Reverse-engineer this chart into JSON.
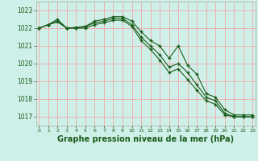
{
  "x": [
    0,
    1,
    2,
    3,
    4,
    5,
    6,
    7,
    8,
    9,
    10,
    11,
    12,
    13,
    14,
    15,
    16,
    17,
    18,
    19,
    20,
    21,
    22,
    23
  ],
  "line1": [
    1022.0,
    1022.2,
    1022.5,
    1022.0,
    1022.05,
    1022.1,
    1022.4,
    1022.5,
    1022.65,
    1022.65,
    1022.4,
    1021.8,
    1021.3,
    1021.0,
    1020.3,
    1021.0,
    1019.9,
    1019.4,
    1018.3,
    1018.1,
    1017.4,
    1017.1,
    1017.1,
    1017.1
  ],
  "line2": [
    1022.0,
    1022.2,
    1022.4,
    1022.0,
    1022.0,
    1022.1,
    1022.3,
    1022.4,
    1022.55,
    1022.55,
    1022.2,
    1021.5,
    1021.0,
    1020.5,
    1019.8,
    1020.0,
    1019.5,
    1018.8,
    1018.1,
    1017.9,
    1017.2,
    1017.0,
    1017.0,
    1017.0
  ],
  "line3": [
    1022.0,
    1022.2,
    1022.35,
    1022.0,
    1022.0,
    1022.0,
    1022.2,
    1022.3,
    1022.45,
    1022.45,
    1022.1,
    1021.3,
    1020.8,
    1020.2,
    1019.5,
    1019.7,
    1019.1,
    1018.5,
    1017.9,
    1017.7,
    1017.1,
    1017.0,
    1017.0,
    1017.0
  ],
  "line_color": "#1a5c1a",
  "bg_color": "#cff0e8",
  "grid_color": "#f0b0b0",
  "xlabel": "Graphe pression niveau de la mer (hPa)",
  "ylim_min": 1016.5,
  "ylim_max": 1023.5,
  "yticks": [
    1017,
    1018,
    1019,
    1020,
    1021,
    1022,
    1023
  ]
}
